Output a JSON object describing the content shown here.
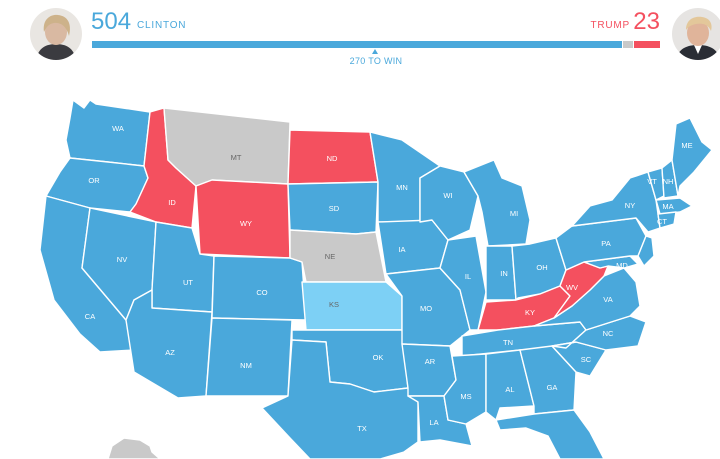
{
  "header": {
    "dem_count": "504",
    "dem_name": "CLINTON",
    "rep_name": "TRUMP",
    "rep_count": "23",
    "win_label": "270 TO WIN"
  },
  "colors": {
    "clinton": "#4aa8db",
    "trump": "#f4505f",
    "undecided": "#c9c9c9",
    "tossup": "#7dd0f5"
  },
  "legend_values": {
    "dem_share": 0.935,
    "undecided_share": 0.02,
    "rep_share": 0.045
  },
  "states": {
    "WA": "WA",
    "OR": "OR",
    "CA": "CA",
    "NV": "NV",
    "ID": "ID",
    "MT": "MT",
    "WY": "WY",
    "UT": "UT",
    "AZ": "AZ",
    "CO": "CO",
    "NM": "NM",
    "ND": "ND",
    "SD": "SD",
    "NE": "NE",
    "KS": "KS",
    "OK": "OK",
    "TX": "TX",
    "MN": "MN",
    "IA": "IA",
    "MO": "MO",
    "AR": "AR",
    "LA": "LA",
    "WI": "WI",
    "IL": "IL",
    "MI": "MI",
    "IN": "IN",
    "OH": "OH",
    "KY": "KY",
    "TN": "TN",
    "MS": "MS",
    "AL": "AL",
    "GA": "GA",
    "FL": "FL",
    "SC": "SC",
    "NC": "NC",
    "VA": "VA",
    "WV": "WV",
    "PA": "PA",
    "NY": "NY",
    "VT": "VT",
    "NH": "NH",
    "ME": "ME",
    "MA": "MA",
    "CT": "CT",
    "MD": "MD"
  }
}
